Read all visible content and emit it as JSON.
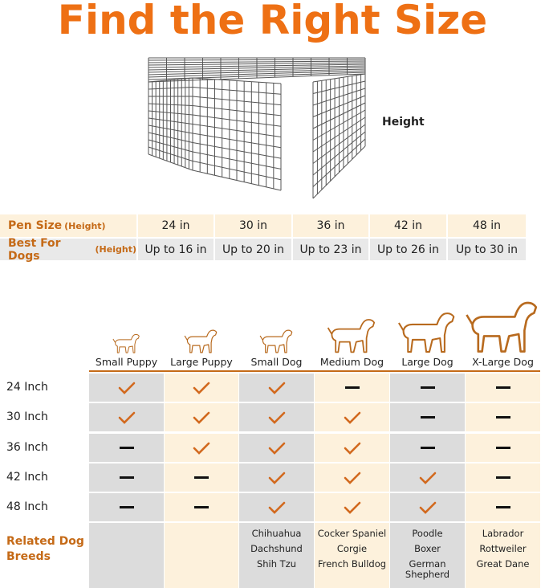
{
  "title": "Find the Right Size",
  "pen_image": {
    "height_label": "Height"
  },
  "size_table": {
    "row1_label": "Pen Size",
    "row1_sub": "(Height)",
    "row2_label": "Best For Dogs",
    "row2_sub": "(Height)",
    "pen_sizes": [
      "24 in",
      "30 in",
      "36 in",
      "42 in",
      "48 in"
    ],
    "dog_heights": [
      "Up to 16 in",
      "Up to 20 in",
      "Up to 23 in",
      "Up to 26 in",
      "Up to 30 in"
    ]
  },
  "comparison": {
    "columns": [
      "Small Puppy",
      "Large Puppy",
      "Small Dog",
      "Medium Dog",
      "Large Dog",
      "X-Large Dog"
    ],
    "rows": [
      {
        "label": "24 Inch",
        "marks": [
          "check",
          "check",
          "check",
          "dash",
          "dash",
          "dash"
        ]
      },
      {
        "label": "30 Inch",
        "marks": [
          "check",
          "check",
          "check",
          "check",
          "dash",
          "dash"
        ]
      },
      {
        "label": "36 Inch",
        "marks": [
          "dash",
          "check",
          "check",
          "check",
          "dash",
          "dash"
        ]
      },
      {
        "label": "42 Inch",
        "marks": [
          "dash",
          "dash",
          "check",
          "check",
          "check",
          "dash"
        ]
      },
      {
        "label": "48 Inch",
        "marks": [
          "dash",
          "dash",
          "check",
          "check",
          "check",
          "dash"
        ]
      }
    ],
    "related_label": "Related Dog Breeds",
    "breeds": [
      [],
      [],
      [
        "Chihuahua",
        "Dachshund",
        "Shih Tzu"
      ],
      [
        "Cocker Spaniel",
        "Corgie",
        "French Bulldog"
      ],
      [
        "Poodle",
        "Boxer",
        "German Shepherd"
      ],
      [
        "Labrador",
        "Rottweiler",
        "Great Dane"
      ]
    ]
  },
  "colors": {
    "accent": "#ee7014",
    "label_brown": "#c56a17",
    "check": "#d2691e",
    "cell_gray": "#dcdcdc",
    "cell_cream": "#fdf1dc"
  }
}
